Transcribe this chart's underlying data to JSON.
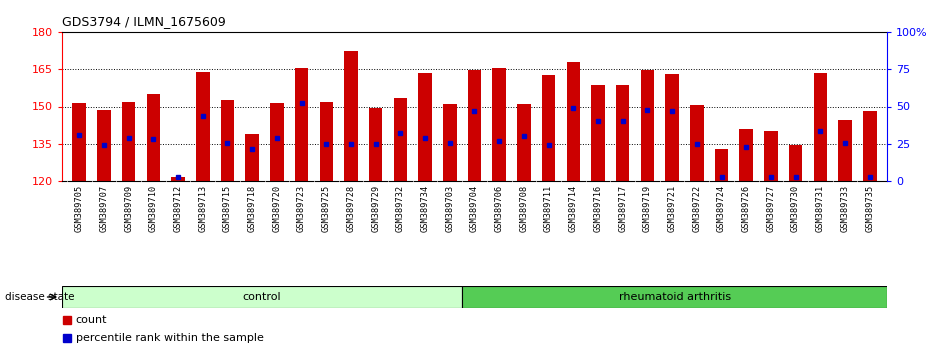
{
  "title": "GDS3794 / ILMN_1675609",
  "samples": [
    "GSM389705",
    "GSM389707",
    "GSM389709",
    "GSM389710",
    "GSM389712",
    "GSM389713",
    "GSM389715",
    "GSM389718",
    "GSM389720",
    "GSM389723",
    "GSM389725",
    "GSM389728",
    "GSM389729",
    "GSM389732",
    "GSM389734",
    "GSM389703",
    "GSM389704",
    "GSM389706",
    "GSM389708",
    "GSM389711",
    "GSM389714",
    "GSM389716",
    "GSM389717",
    "GSM389719",
    "GSM389721",
    "GSM389722",
    "GSM389724",
    "GSM389726",
    "GSM389727",
    "GSM389730",
    "GSM389731",
    "GSM389733",
    "GSM389735"
  ],
  "bar_tops": [
    151.5,
    148.5,
    152.0,
    155.0,
    121.5,
    164.0,
    152.5,
    139.0,
    151.5,
    165.5,
    152.0,
    172.5,
    149.5,
    153.5,
    163.5,
    151.0,
    164.5,
    165.5,
    151.0,
    162.5,
    168.0,
    158.5,
    158.5,
    164.5,
    163.0,
    150.5,
    133.0,
    141.0,
    140.0,
    134.5,
    163.5,
    144.5,
    148.0
  ],
  "blue_dot_y": [
    138.5,
    134.5,
    137.5,
    137.0,
    121.5,
    146.0,
    135.5,
    133.0,
    137.5,
    151.5,
    135.0,
    135.0,
    135.0,
    139.5,
    137.5,
    135.5,
    148.0,
    136.0,
    138.0,
    134.5,
    149.5,
    144.0,
    144.0,
    148.5,
    148.0,
    135.0,
    121.5,
    133.5,
    121.5,
    121.5,
    140.0,
    135.5,
    121.5
  ],
  "ymin": 120,
  "ymax": 180,
  "yticks_left": [
    120,
    135,
    150,
    165,
    180
  ],
  "yticks_right_vals": [
    0,
    25,
    50,
    75,
    100
  ],
  "yticks_right_labels": [
    "0",
    "25",
    "50",
    "75",
    "100%"
  ],
  "bar_color": "#cc0000",
  "dot_color": "#0000cc",
  "control_count": 16,
  "control_label": "control",
  "ra_label": "rheumatoid arthritis",
  "disease_state_label": "disease state",
  "control_color": "#ccffcc",
  "ra_color": "#55cc55",
  "legend_count_label": "count",
  "legend_pct_label": "percentile rank within the sample",
  "bar_width": 0.55,
  "xtick_bg_color": "#d8d8d8"
}
